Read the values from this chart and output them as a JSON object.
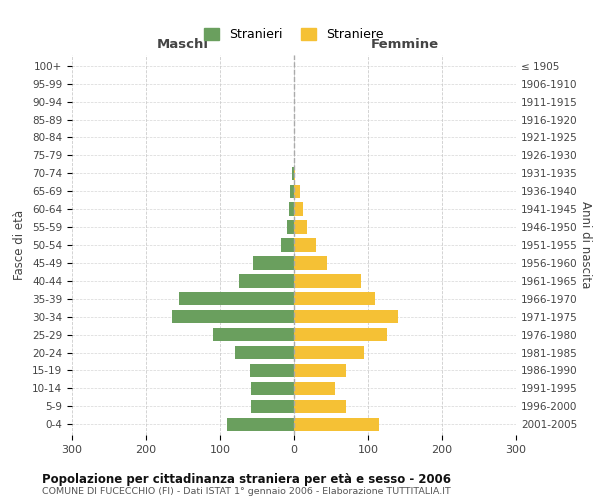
{
  "age_groups": [
    "0-4",
    "5-9",
    "10-14",
    "15-19",
    "20-24",
    "25-29",
    "30-34",
    "35-39",
    "40-44",
    "45-49",
    "50-54",
    "55-59",
    "60-64",
    "65-69",
    "70-74",
    "75-79",
    "80-84",
    "85-89",
    "90-94",
    "95-99",
    "100+"
  ],
  "birth_years": [
    "2001-2005",
    "1996-2000",
    "1991-1995",
    "1986-1990",
    "1981-1985",
    "1976-1980",
    "1971-1975",
    "1966-1970",
    "1961-1965",
    "1956-1960",
    "1951-1955",
    "1946-1950",
    "1941-1945",
    "1936-1940",
    "1931-1935",
    "1926-1930",
    "1921-1925",
    "1916-1920",
    "1911-1915",
    "1906-1910",
    "≤ 1905"
  ],
  "maschi": [
    90,
    58,
    58,
    60,
    80,
    110,
    165,
    155,
    75,
    55,
    18,
    10,
    7,
    5,
    3,
    0,
    0,
    0,
    0,
    0,
    0
  ],
  "femmine": [
    115,
    70,
    55,
    70,
    95,
    125,
    140,
    110,
    90,
    45,
    30,
    18,
    12,
    8,
    2,
    0,
    0,
    0,
    0,
    0,
    0
  ],
  "maschi_color": "#6a9f5e",
  "femmine_color": "#f5c135",
  "background_color": "#ffffff",
  "grid_color": "#cccccc",
  "title": "Popolazione per cittadinanza straniera per età e sesso - 2006",
  "subtitle": "COMUNE DI FUCECCHIO (FI) - Dati ISTAT 1° gennaio 2006 - Elaborazione TUTTITALIA.IT",
  "xlabel_left": "Maschi",
  "xlabel_right": "Femmine",
  "ylabel_left": "Fasce di età",
  "ylabel_right": "Anni di nascita",
  "legend_maschi": "Stranieri",
  "legend_femmine": "Straniere",
  "xlim": 300,
  "figsize": [
    6.0,
    5.0
  ],
  "dpi": 100
}
